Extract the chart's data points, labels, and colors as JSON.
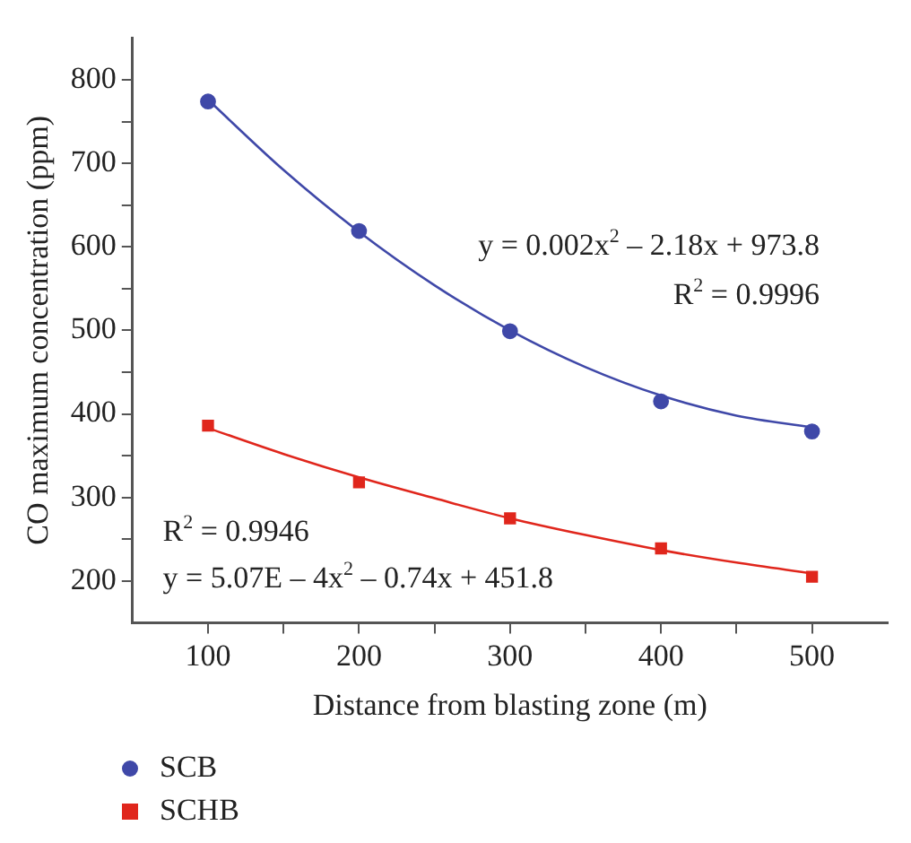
{
  "chart_data": {
    "type": "scatter",
    "xlabel": "Distance from blasting zone (m)",
    "ylabel": "CO maximum concentration (ppm)",
    "xlim": [
      50,
      550
    ],
    "xticks": [
      100,
      {
        "value": 150,
        "label": null
      },
      200,
      {
        "value": 250,
        "label": null
      },
      300,
      {
        "value": 350,
        "label": null
      },
      400,
      {
        "value": 450,
        "label": null
      },
      500
    ],
    "ylim": [
      150,
      850
    ],
    "yticks": [
      200,
      {
        "value": 250,
        "label": null
      },
      300,
      {
        "value": 350,
        "label": null
      },
      400,
      {
        "value": 450,
        "label": null
      },
      500,
      {
        "value": 550,
        "label": null
      },
      600,
      {
        "value": 650,
        "label": null
      },
      700,
      {
        "value": 750,
        "label": null
      },
      800
    ],
    "grid": false,
    "legend": "bottom left",
    "series": [
      {
        "name": "SCB",
        "type": "scatter",
        "marker": "circle",
        "color": "#3f48a8",
        "x": [
          100,
          200,
          300,
          400,
          500
        ],
        "values": [
          774,
          619,
          499,
          415,
          379
        ]
      },
      {
        "name": "SCHB",
        "type": "scatter",
        "marker": "square",
        "color": "#e0261c",
        "x": [
          100,
          200,
          300,
          400,
          500
        ],
        "values": [
          386,
          318,
          275,
          239,
          205
        ]
      },
      {
        "type": "line",
        "marker": "none",
        "color": "#3f48a8",
        "x": [
          100,
          150,
          200,
          250,
          300,
          350,
          400,
          450,
          500
        ],
        "values": [
          776,
          692,
          618,
          554,
          500,
          456,
          422,
          398,
          384
        ]
      },
      {
        "type": "line",
        "marker": "none",
        "color": "#e0261c",
        "x": [
          100,
          150,
          200,
          250,
          300,
          350,
          400,
          450,
          500
        ],
        "values": [
          383,
          352,
          324,
          299,
          275,
          255,
          237,
          222,
          209
        ]
      }
    ],
    "annotations": [
      "y = 0.002x$^{2}$ – 2.18x + 973.8",
      "R$^{2}$ = 0.9996",
      "R$^{2}$ = 0.9946",
      "y = 5.07E – 4x$^{2}$ – 0.74x + 451.8"
    ]
  }
}
